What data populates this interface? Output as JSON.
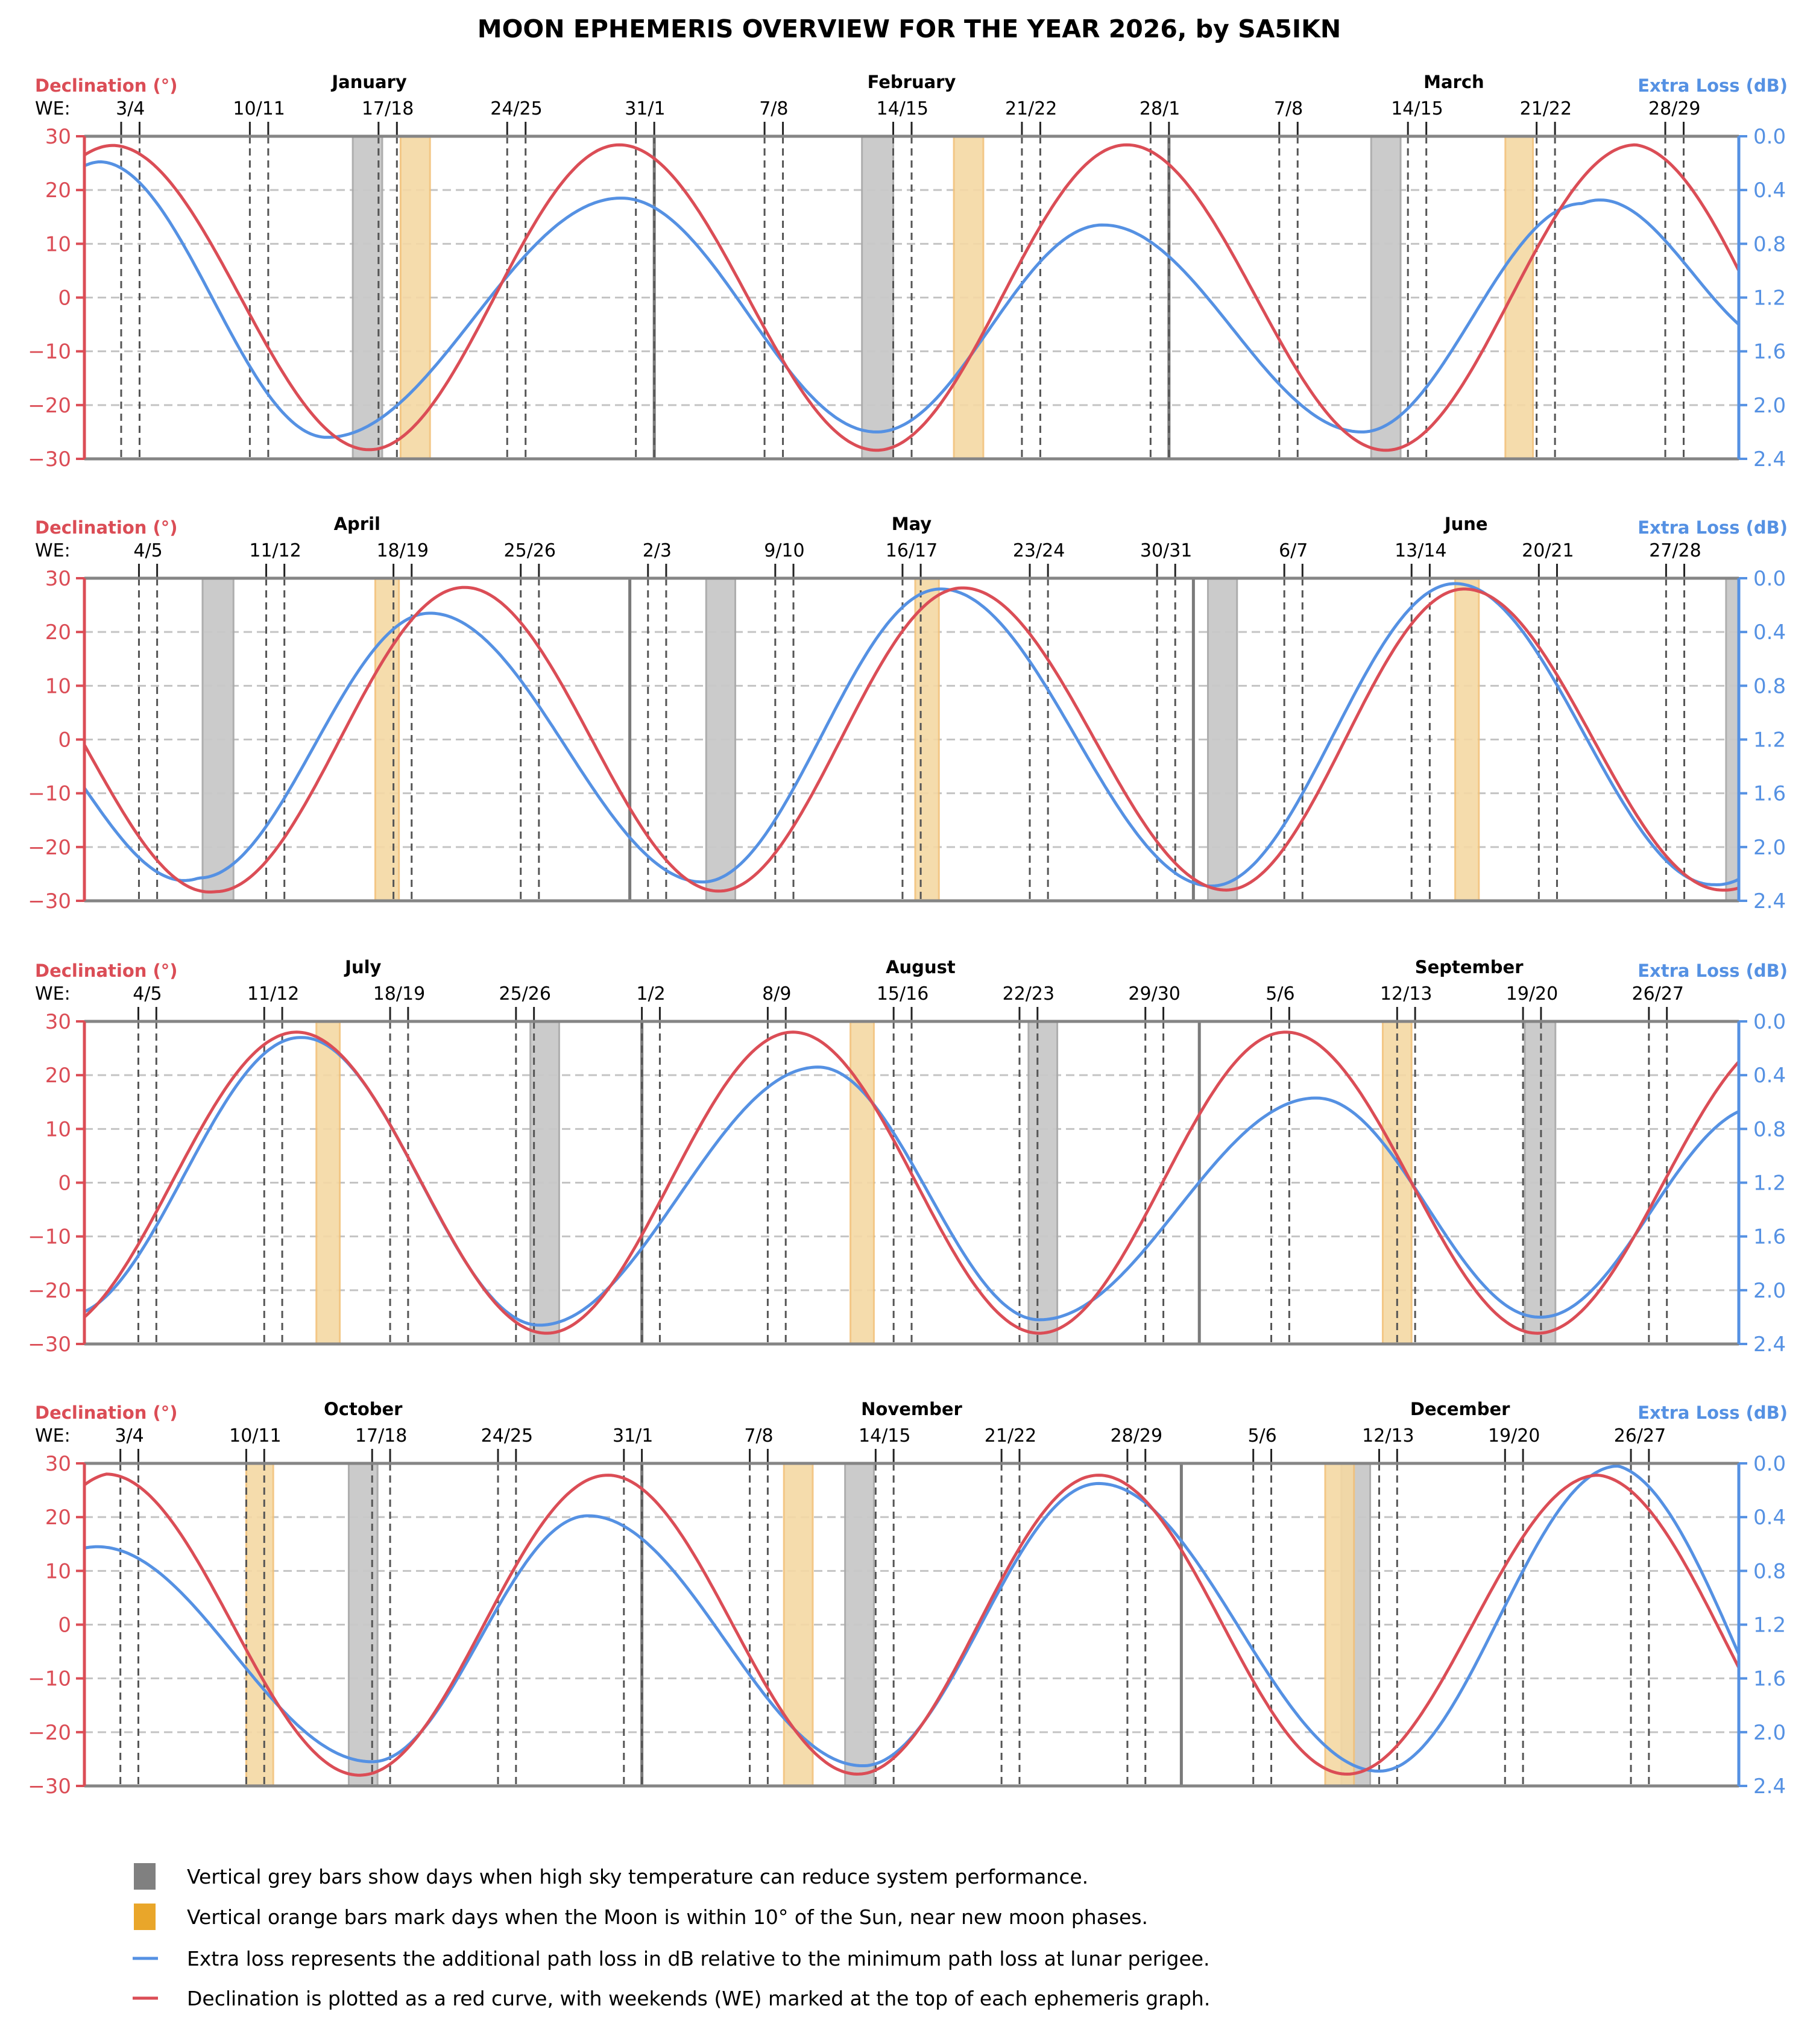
{
  "title": "MOON EPHEMERIS OVERVIEW FOR THE YEAR 2026, by SA5IKN",
  "colors": {
    "declination": "#db4d56",
    "extra_loss": "#5591e3",
    "grey_bar": "#c9c9c9",
    "orange_bar": "#f5d9a4",
    "weekend_line": "#555555",
    "month_line": "#7a7a7a",
    "grid": "#c4c4c4",
    "frame": "#858585"
  },
  "chart_data": {
    "type": "line",
    "year": 2026,
    "left_axis": {
      "label": "Declination (°)",
      "ylim": [
        -30,
        30
      ],
      "ticks": [
        "30",
        "20",
        "10",
        "0",
        "−10",
        "−20",
        "−30"
      ],
      "tick_values": [
        30,
        20,
        10,
        0,
        -10,
        -20,
        -30
      ]
    },
    "right_axis": {
      "label": "Extra Loss (dB)",
      "ylim": [
        2.4,
        0.0
      ],
      "inverted": true,
      "ticks": [
        "0.0",
        "0.4",
        "0.8",
        "1.2",
        "1.6",
        "2.0",
        "2.4"
      ]
    },
    "we_label": "WE:",
    "grid": true,
    "panels": [
      {
        "months": [
          "January",
          "February",
          "March"
        ],
        "start": "Jan 1",
        "end": "Apr 1",
        "weekends": [
          "3/4",
          "10/11",
          "17/18",
          "24/25",
          "31/1",
          "7/8",
          "14/15",
          "21/22",
          "28/1",
          "7/8",
          "14/15",
          "21/22",
          "28/29"
        ],
        "declination": {
          "start": 26.5,
          "extrema": [
            [
              "Jan 2.5",
              28.3
            ],
            [
              "Jan 16.5",
              -28.3
            ],
            [
              "Jan 30.1",
              28.4
            ],
            [
              "Feb 13.1",
              -28.4
            ],
            [
              "Feb 26.7",
              28.4
            ],
            [
              "Mar 12.8",
              -28.4
            ],
            [
              "Mar 26.4",
              28.4
            ]
          ],
          "end": 5
        },
        "extra_loss": {
          "start": 0.22,
          "extrema": [
            [
              "Jan 1.8",
              0.19
            ],
            [
              "Jan 14.2",
              2.24
            ],
            [
              "Jan 30.2",
              0.46
            ],
            [
              "Feb 13.1",
              2.2
            ],
            [
              "Feb 25.4",
              0.66
            ],
            [
              "Mar 11.5",
              2.2
            ],
            [
              "Mar 23.5",
              0.5
            ]
          ],
          "end": 1.4
        },
        "grey_bars": [
          [
            "Jan 15.6",
            "Jan 17.2"
          ],
          [
            "Feb 12.3",
            "Feb 14.0"
          ],
          [
            "Mar 12.0",
            "Mar 13.6"
          ]
        ],
        "orange_bars": [
          [
            "Jan 18.2",
            "Jan 19.8"
          ],
          [
            "Feb 17.3",
            "Feb 18.9"
          ],
          [
            "Mar 19.3",
            "Mar 20.8"
          ]
        ]
      },
      {
        "months": [
          "April",
          "May",
          "June"
        ],
        "start": "Apr 1",
        "end": "Jul 1",
        "weekends": [
          "4/5",
          "11/12",
          "18/19",
          "25/26",
          "2/3",
          "9/10",
          "16/17",
          "23/24",
          "30/31",
          "6/7",
          "13/14",
          "20/21",
          "27/28"
        ],
        "declination": {
          "start": -1,
          "extrema": [
            [
              "Apr 8.2",
              -28.3
            ],
            [
              "Apr 21.9",
              28.3
            ],
            [
              "May 5.9",
              -28.2
            ],
            [
              "May 19.3",
              28.2
            ],
            [
              "Jun 2.8",
              -28
            ],
            [
              "Jun 15.9",
              28
            ],
            [
              "Jun 30.1",
              -28
            ]
          ],
          "end": -27.6
        },
        "extra_loss": {
          "start": 1.56,
          "extrema": [
            [
              "Apr 7.3",
              2.23
            ],
            [
              "Apr 20.0",
              0.26
            ],
            [
              "May 5.0",
              2.26
            ],
            [
              "May 18.1",
              0.08
            ],
            [
              "Jun 2.0",
              2.29
            ],
            [
              "Jun 15.4",
              0.04
            ],
            [
              "Jun 29.6",
              2.28
            ]
          ],
          "end": 2.24
        },
        "grey_bars": [
          [
            "Apr 7.5",
            "Apr 9.2"
          ],
          [
            "May 5.2",
            "May 6.8"
          ],
          [
            "Jun 1.8",
            "Jun 3.4"
          ],
          [
            "Jun 30.3",
            "Jul 1.0"
          ]
        ],
        "orange_bars": [
          [
            "Apr 17.0",
            "Apr 18.3"
          ],
          [
            "May 16.7",
            "May 18.0"
          ],
          [
            "Jun 15.4",
            "Jun 16.7"
          ]
        ]
      },
      {
        "months": [
          "July",
          "August",
          "September"
        ],
        "start": "Jul 1",
        "end": "Oct 1",
        "weekends": [
          "4/5",
          "11/12",
          "18/19",
          "25/26",
          "1/2",
          "8/9",
          "15/16",
          "22/23",
          "29/30",
          "5/6",
          "12/13",
          "19/20",
          "26/27"
        ],
        "declination": {
          "start": -25,
          "extrema": [
            [
              "Jul 12.8",
              28
            ],
            [
              "Jul 26.7",
              -28
            ],
            [
              "Aug 9.4",
              28
            ],
            [
              "Aug 23.1",
              -28
            ],
            [
              "Sep 5.8",
              28
            ],
            [
              "Sep 19.8",
              -28
            ]
          ],
          "end": 22.5
        },
        "extra_loss": {
          "start": 2.16,
          "extrema": [
            [
              "Jul 13.1",
              0.12
            ],
            [
              "Jul 26.3",
              2.26
            ],
            [
              "Aug 10.8",
              0.34
            ],
            [
              "Aug 23.1",
              2.22
            ],
            [
              "Sep 7.5",
              0.57
            ],
            [
              "Sep 19.9",
              2.2
            ]
          ],
          "end": 0.67
        },
        "grey_bars": [
          [
            "Jul 25.8",
            "Jul 27.4"
          ],
          [
            "Aug 22.5",
            "Aug 24.1"
          ],
          [
            "Sep 19.1",
            "Sep 20.8"
          ]
        ],
        "orange_bars": [
          [
            "Jul 13.9",
            "Jul 15.2"
          ],
          [
            "Aug 12.6",
            "Aug 13.9"
          ],
          [
            "Sep 11.2",
            "Sep 12.8"
          ]
        ]
      },
      {
        "months": [
          "October",
          "November",
          "December"
        ],
        "start": "Oct 1",
        "end": "Jan 1",
        "weekends": [
          "3/4",
          "10/11",
          "17/18",
          "24/25",
          "31/1",
          "7/8",
          "14/15",
          "21/22",
          "28/29",
          "5/6",
          "12/13",
          "19/20",
          "26/27"
        ],
        "declination": {
          "start": 26,
          "extrema": [
            [
              "Oct 2.2",
              28
            ],
            [
              "Oct 16.3",
              -28
            ],
            [
              "Oct 30.1",
              27.8
            ],
            [
              "Nov 13.0",
              -27.8
            ],
            [
              "Nov 26.4",
              27.8
            ],
            [
              "Dec 10.2",
              -27.8
            ],
            [
              "Dec 24.2",
              27.8
            ]
          ],
          "end": -8
        },
        "extra_loss": {
          "start": 0.63,
          "extrema": [
            [
              "Oct 1.7",
              0.62
            ],
            [
              "Oct 17.0",
              2.22
            ],
            [
              "Oct 29.0",
              0.39
            ],
            [
              "Nov 13.3",
              2.25
            ],
            [
              "Nov 26.4",
              0.15
            ],
            [
              "Dec 12.0",
              2.29
            ],
            [
              "Dec 25.3",
              0.02
            ]
          ],
          "end": 1.42
        },
        "grey_bars": [
          [
            "Oct 15.7",
            "Oct 17.3"
          ],
          [
            "Nov 12.3",
            "Nov 13.9"
          ],
          [
            "Dec 9.9",
            "Dec 11.5"
          ]
        ],
        "orange_bars": [
          [
            "Oct 10.0",
            "Oct 11.5"
          ],
          [
            "Nov 8.9",
            "Nov 10.5"
          ],
          [
            "Dec 9.0",
            "Dec 10.6"
          ]
        ]
      }
    ],
    "legend": [
      {
        "kind": "grey_bar",
        "text": "Vertical grey bars show days when high sky temperature can reduce system performance."
      },
      {
        "kind": "orange_bar",
        "text": "Vertical orange bars mark days when the Moon is within 10° of the Sun, near new moon phases."
      },
      {
        "kind": "extra_loss",
        "text": "Extra loss represents the additional path loss in dB relative to the minimum path loss at lunar perigee."
      },
      {
        "kind": "declination",
        "text": "Declination is plotted as a red curve, with weekends (WE) marked at the top of each ephemeris graph."
      }
    ]
  }
}
